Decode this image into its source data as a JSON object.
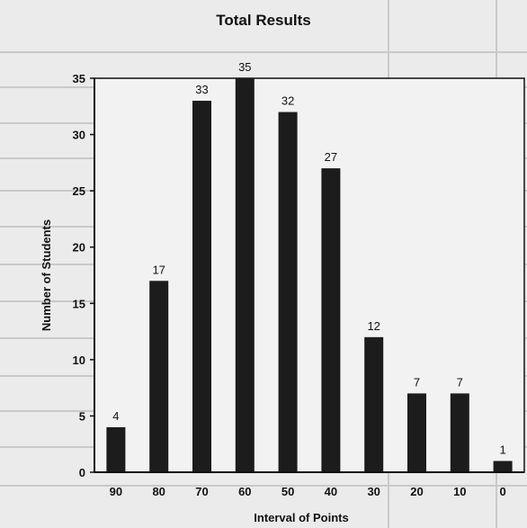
{
  "chart_data": {
    "type": "bar",
    "title": "Total Results",
    "xlabel": "Interval of Points",
    "ylabel": "Number of Students",
    "categories": [
      "90",
      "80",
      "70",
      "60",
      "50",
      "40",
      "30",
      "20",
      "10",
      "0"
    ],
    "values": [
      4,
      17,
      33,
      35,
      32,
      27,
      12,
      7,
      7,
      1
    ],
    "data_labels": [
      "4",
      "17",
      "33",
      "35",
      "32",
      "27",
      "12",
      "7",
      "7",
      "1"
    ],
    "ylim": [
      0,
      35
    ],
    "yticks": [
      "0",
      "5",
      "10",
      "15",
      "20",
      "25",
      "30",
      "35"
    ],
    "grid": false,
    "legend": "none",
    "colors": {
      "bar": "#1c1c1c",
      "axis": "#111111",
      "background": "#ebebeb"
    }
  }
}
